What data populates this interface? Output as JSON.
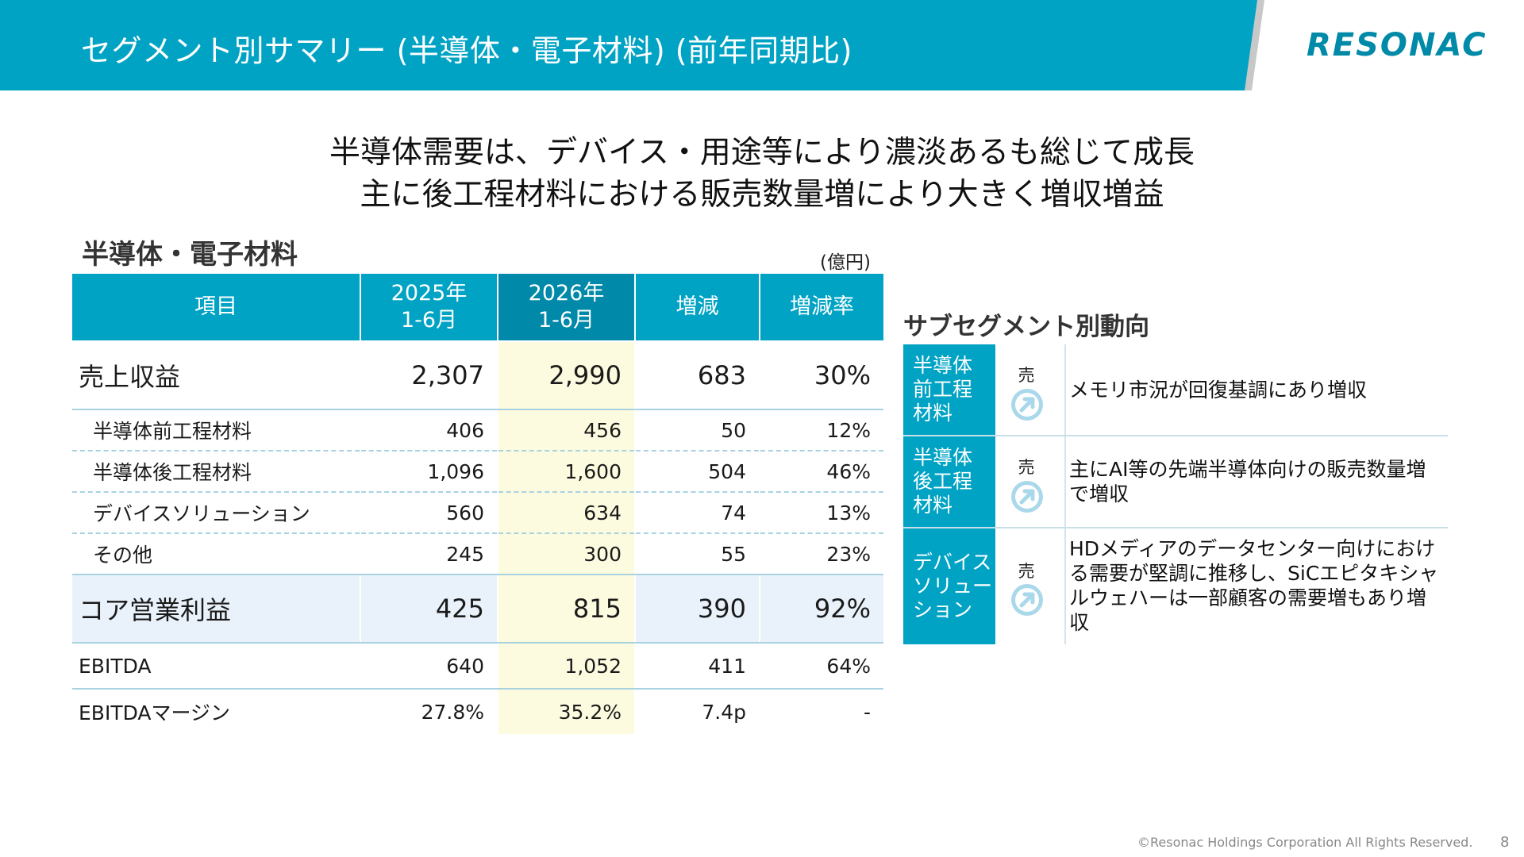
{
  "header": {
    "title": "セグメント別サマリー (半導体・電子材料) (前年同期比)",
    "logo": "RESONAC"
  },
  "headline": {
    "line1": "半導体需要は、デバイス・用途等により濃淡あるも総じて成長",
    "line2": "主に後工程材料における販売数量増により大きく増収増益"
  },
  "section": {
    "title": "半導体・電子材料",
    "unit": "(億円)"
  },
  "table": {
    "headers": {
      "item": "項目",
      "y2025_l1": "2025年",
      "y2025_l2": "1-6月",
      "y2026_l1": "2026年",
      "y2026_l2": "1-6月",
      "change": "増減",
      "rate": "増減率"
    },
    "rows": [
      {
        "label": "売上収益",
        "v2025": "2,307",
        "v2026": "2,990",
        "change": "683",
        "rate": "30%"
      },
      {
        "label": "半導体前工程材料",
        "v2025": "406",
        "v2026": "456",
        "change": "50",
        "rate": "12%"
      },
      {
        "label": "半導体後工程材料",
        "v2025": "1,096",
        "v2026": "1,600",
        "change": "504",
        "rate": "46%"
      },
      {
        "label": "デバイスソリューション",
        "v2025": "560",
        "v2026": "634",
        "change": "74",
        "rate": "13%"
      },
      {
        "label": "その他",
        "v2025": "245",
        "v2026": "300",
        "change": "55",
        "rate": "23%"
      },
      {
        "label": "コア営業利益",
        "v2025": "425",
        "v2026": "815",
        "change": "390",
        "rate": "92%"
      },
      {
        "label": "EBITDA",
        "v2025": "640",
        "v2026": "1,052",
        "change": "411",
        "rate": "64%"
      },
      {
        "label": "EBITDAマージン",
        "v2025": "27.8%",
        "v2026": "35.2%",
        "change": "7.4p",
        "rate": "-"
      }
    ]
  },
  "subsegments": {
    "title": "サブセグメント別動向",
    "sales_label": "売上",
    "icon": "arrow-up-right-icon",
    "items": [
      {
        "name_l1": "半導体",
        "name_l2": "前工程",
        "name_l3": "材料",
        "text": "メモリ市況が回復基調にあり増収"
      },
      {
        "name_l1": "半導体",
        "name_l2": "後工程",
        "name_l3": "材料",
        "text": "主にAI等の先端半導体向けの販売数量増で増収"
      },
      {
        "name_l1": "デバイス",
        "name_l2": "ソリュー",
        "name_l3": "ション",
        "text": "HDメディアのデータセンター向けにおける需要が堅調に推移し、SiCエピタキシャルウェハーは一部顧客の需要増もあり増収"
      }
    ]
  },
  "footer": {
    "copyright": "©Resonac Holdings Corporation  All Rights Reserved.",
    "page": "8"
  },
  "colors": {
    "brand": "#00a3c4",
    "brand_dark": "#0089a8",
    "highlight": "#fdfbdf",
    "core_row": "#e9f2fa"
  }
}
